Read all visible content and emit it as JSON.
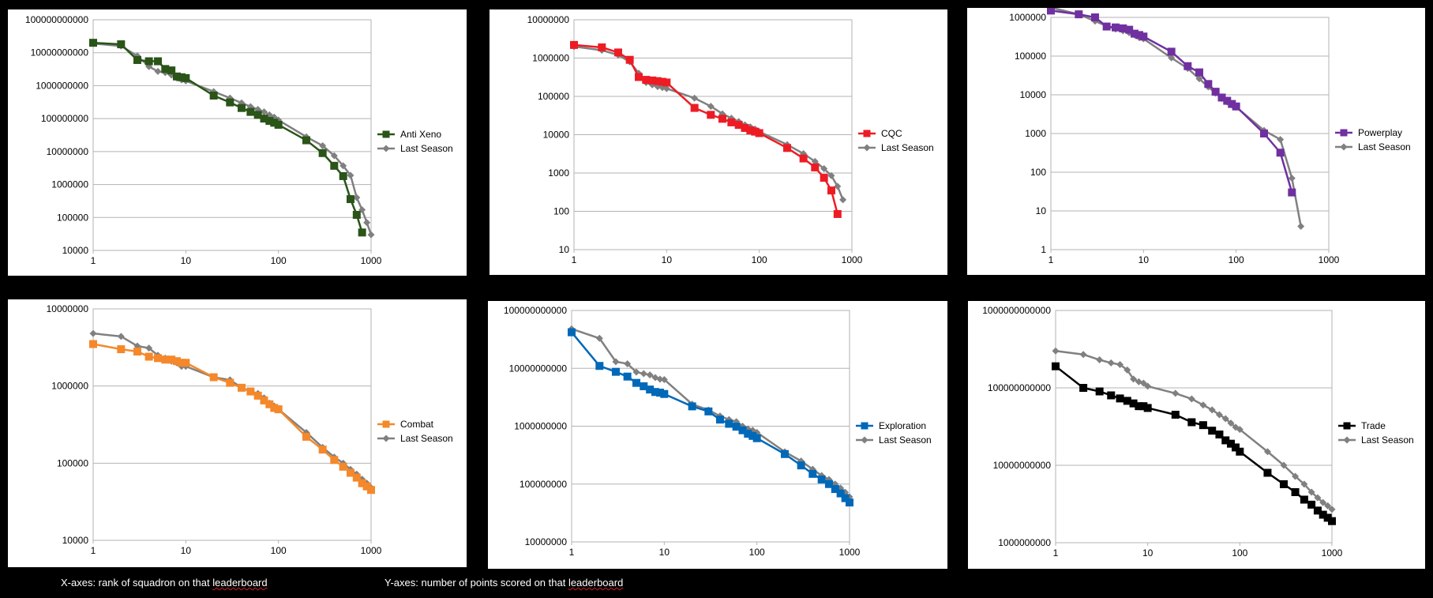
{
  "footnotes": {
    "x_prefix": "X-axes: rank of squadron on that ",
    "x_word": "leaderboard",
    "y_prefix": "Y-axes: number of points scored on that ",
    "y_word": "leaderboard"
  },
  "chart_data": [
    {
      "type": "line",
      "xscale": "log",
      "yscale": "log",
      "xlim": [
        1,
        1000
      ],
      "ylim": [
        10000,
        100000000000
      ],
      "xticks": [
        1,
        10,
        100,
        1000
      ],
      "yticks": [
        10000,
        100000,
        1000000,
        10000000,
        100000000,
        1000000000,
        10000000000,
        100000000000
      ],
      "x_tick_labels": [
        "1",
        "10",
        "100",
        "1000"
      ],
      "y_tick_labels": [
        "10000",
        "100000",
        "1000000",
        "10000000",
        "100000000",
        "1000000000",
        "10000000000",
        "100000000000"
      ],
      "grid": "horizontal",
      "legend": "right",
      "series": [
        {
          "name": "Anti Xeno",
          "color": "#2a5418",
          "marker": "square",
          "x": [
            1,
            2,
            3,
            4,
            5,
            6,
            7,
            8,
            9,
            10,
            20,
            30,
            40,
            50,
            60,
            70,
            80,
            90,
            100,
            200,
            300,
            400,
            500,
            600,
            700,
            800
          ],
          "y": [
            20000000000,
            18000000000,
            6000000000,
            5500000000,
            5500000000,
            3200000000,
            2900000000,
            1900000000,
            1800000000,
            1700000000,
            500000000,
            310000000,
            210000000,
            160000000,
            130000000,
            100000000,
            85000000,
            75000000,
            65000000,
            22000000,
            9000000,
            3700000,
            1800000,
            360000,
            120000,
            35000
          ]
        },
        {
          "name": "Last Season",
          "color": "#808080",
          "marker": "diamond",
          "x": [
            1,
            2,
            3,
            4,
            5,
            6,
            7,
            8,
            9,
            10,
            20,
            30,
            40,
            50,
            60,
            70,
            80,
            90,
            100,
            200,
            300,
            400,
            500,
            600,
            700,
            800,
            900,
            1000
          ],
          "y": [
            19000000000,
            16000000000,
            8000000000,
            3800000000,
            2700000000,
            2500000000,
            2100000000,
            1700000000,
            1500000000,
            1400000000,
            660000000,
            420000000,
            300000000,
            230000000,
            190000000,
            160000000,
            130000000,
            110000000,
            90000000,
            28000000,
            15000000,
            7500000,
            3700000,
            1900000,
            400000,
            170000,
            70000,
            30000
          ]
        }
      ]
    },
    {
      "type": "line",
      "xscale": "log",
      "yscale": "log",
      "xlim": [
        1,
        1000
      ],
      "ylim": [
        10,
        10000000
      ],
      "xticks": [
        1,
        10,
        100,
        1000
      ],
      "yticks": [
        10,
        100,
        1000,
        10000,
        100000,
        1000000,
        10000000
      ],
      "x_tick_labels": [
        "1",
        "10",
        "100",
        "1000"
      ],
      "y_tick_labels": [
        "10",
        "100",
        "1000",
        "10000",
        "100000",
        "1000000",
        "10000000"
      ],
      "grid": "horizontal",
      "legend": "right",
      "series": [
        {
          "name": "CQC",
          "color": "#ed1c24",
          "marker": "square",
          "x": [
            1,
            2,
            3,
            4,
            5,
            6,
            7,
            8,
            9,
            10,
            20,
            30,
            40,
            50,
            60,
            70,
            80,
            90,
            100,
            200,
            300,
            400,
            500,
            600,
            700
          ],
          "y": [
            2200000,
            1900000,
            1400000,
            900000,
            320000,
            270000,
            260000,
            250000,
            240000,
            230000,
            50000,
            33000,
            26000,
            21000,
            18000,
            15000,
            13000,
            12000,
            11000,
            4500,
            2400,
            1400,
            750,
            350,
            85
          ]
        },
        {
          "name": "Last Season",
          "color": "#808080",
          "marker": "diamond",
          "x": [
            1,
            2,
            3,
            4,
            5,
            6,
            7,
            8,
            9,
            10,
            20,
            30,
            40,
            50,
            60,
            70,
            80,
            90,
            100,
            200,
            300,
            400,
            500,
            600,
            700,
            800
          ],
          "y": [
            2000000,
            1600000,
            1200000,
            800000,
            400000,
            230000,
            200000,
            180000,
            170000,
            160000,
            90000,
            55000,
            35000,
            27000,
            22000,
            18000,
            16000,
            14000,
            12000,
            5500,
            3200,
            2000,
            1300,
            850,
            450,
            200
          ]
        }
      ]
    },
    {
      "type": "line",
      "xscale": "log",
      "yscale": "log",
      "xlim": [
        1,
        1000
      ],
      "ylim": [
        1,
        1000000
      ],
      "xticks": [
        1,
        10,
        100,
        1000
      ],
      "yticks": [
        1,
        10,
        100,
        1000,
        10000,
        100000,
        1000000
      ],
      "x_tick_labels": [
        "1",
        "10",
        "100",
        "1000"
      ],
      "y_tick_labels": [
        "1",
        "10",
        "100",
        "1000",
        "10000",
        "100000",
        "1000000"
      ],
      "grid": "horizontal",
      "legend": "right",
      "series": [
        {
          "name": "Powerplay",
          "color": "#7030a0",
          "marker": "square",
          "x": [
            1,
            2,
            3,
            4,
            5,
            6,
            7,
            8,
            9,
            10,
            20,
            30,
            40,
            50,
            60,
            70,
            80,
            90,
            100,
            200,
            300,
            400
          ],
          "y": [
            1500000,
            1200000,
            1000000,
            580000,
            550000,
            520000,
            480000,
            380000,
            350000,
            320000,
            130000,
            55000,
            38000,
            19000,
            12000,
            8500,
            7000,
            5800,
            5000,
            1000,
            320,
            30
          ]
        },
        {
          "name": "Last Season",
          "color": "#808080",
          "marker": "diamond",
          "x": [
            1,
            2,
            3,
            4,
            5,
            6,
            7,
            8,
            9,
            10,
            20,
            30,
            40,
            50,
            60,
            70,
            80,
            90,
            100,
            200,
            300,
            400,
            500
          ],
          "y": [
            1800000,
            1200000,
            800000,
            600000,
            500000,
            450000,
            400000,
            350000,
            300000,
            280000,
            90000,
            48000,
            26000,
            16000,
            11000,
            8000,
            6500,
            5500,
            4800,
            1200,
            700,
            70,
            4
          ]
        }
      ]
    },
    {
      "type": "line",
      "xscale": "log",
      "yscale": "log",
      "xlim": [
        1,
        1000
      ],
      "ylim": [
        10000,
        10000000
      ],
      "xticks": [
        1,
        10,
        100,
        1000
      ],
      "yticks": [
        10000,
        100000,
        1000000,
        10000000
      ],
      "x_tick_labels": [
        "1",
        "10",
        "100",
        "1000"
      ],
      "y_tick_labels": [
        "10000",
        "100000",
        "1000000",
        "10000000"
      ],
      "grid": "horizontal",
      "legend": "right",
      "series": [
        {
          "name": "Combat",
          "color": "#f4882a",
          "marker": "square",
          "x": [
            1,
            2,
            3,
            4,
            5,
            6,
            7,
            8,
            9,
            10,
            20,
            30,
            40,
            50,
            60,
            70,
            80,
            90,
            100,
            200,
            300,
            400,
            500,
            600,
            700,
            800,
            900,
            1000
          ],
          "y": [
            3500000,
            3000000,
            2800000,
            2400000,
            2300000,
            2200000,
            2200000,
            2100000,
            2000000,
            2000000,
            1300000,
            1100000,
            950000,
            850000,
            750000,
            650000,
            580000,
            520000,
            500000,
            220000,
            150000,
            110000,
            90000,
            75000,
            65000,
            55000,
            50000,
            45000
          ]
        },
        {
          "name": "Last Season",
          "color": "#808080",
          "marker": "diamond",
          "x": [
            1,
            2,
            3,
            4,
            5,
            6,
            7,
            8,
            9,
            10,
            20,
            30,
            40,
            50,
            60,
            70,
            80,
            90,
            100,
            200,
            300,
            400,
            500,
            600,
            700,
            800,
            900,
            1000
          ],
          "y": [
            4800000,
            4400000,
            3300000,
            3100000,
            2500000,
            2300000,
            2100000,
            2000000,
            1800000,
            1800000,
            1300000,
            1200000,
            950000,
            850000,
            800000,
            700000,
            600000,
            550000,
            500000,
            250000,
            160000,
            120000,
            100000,
            83000,
            72000,
            62000,
            55000,
            48000
          ]
        }
      ]
    },
    {
      "type": "line",
      "xscale": "log",
      "yscale": "log",
      "xlim": [
        1,
        1000
      ],
      "ylim": [
        10000000,
        100000000000
      ],
      "xticks": [
        1,
        10,
        100,
        1000
      ],
      "yticks": [
        10000000,
        100000000,
        1000000000,
        10000000000,
        100000000000
      ],
      "x_tick_labels": [
        "1",
        "10",
        "100",
        "1000"
      ],
      "y_tick_labels": [
        "10000000",
        "100000000",
        "1000000000",
        "10000000000",
        "100000000000"
      ],
      "grid": "horizontal",
      "legend": "right",
      "series": [
        {
          "name": "Exploration",
          "color": "#0068b8",
          "marker": "square",
          "x": [
            1,
            2,
            3,
            4,
            5,
            6,
            7,
            8,
            9,
            10,
            20,
            30,
            40,
            50,
            60,
            70,
            80,
            90,
            100,
            200,
            300,
            400,
            500,
            600,
            700,
            800,
            900,
            1000
          ],
          "y": [
            42000000000,
            11000000000,
            8700000000,
            7200000000,
            5600000000,
            4900000000,
            4300000000,
            3900000000,
            3800000000,
            3600000000,
            2200000000,
            1800000000,
            1300000000,
            1100000000,
            980000000,
            850000000,
            740000000,
            680000000,
            620000000,
            330000000,
            210000000,
            150000000,
            120000000,
            100000000,
            82000000,
            69000000,
            57000000,
            48000000
          ]
        },
        {
          "name": "Last Season",
          "color": "#808080",
          "marker": "diamond",
          "x": [
            1,
            2,
            3,
            4,
            5,
            6,
            7,
            8,
            9,
            10,
            20,
            30,
            40,
            50,
            60,
            70,
            80,
            90,
            100,
            200,
            300,
            400,
            500,
            600,
            700,
            800,
            900,
            1000
          ],
          "y": [
            48000000000,
            33000000000,
            13000000000,
            12000000000,
            8600000000,
            8100000000,
            7700000000,
            6900000000,
            6500000000,
            6400000000,
            2400000000,
            1900000000,
            1500000000,
            1300000000,
            1200000000,
            1000000000,
            900000000,
            850000000,
            780000000,
            360000000,
            250000000,
            180000000,
            140000000,
            120000000,
            100000000,
            85000000,
            72000000,
            60000000
          ]
        }
      ]
    },
    {
      "type": "line",
      "xscale": "log",
      "yscale": "log",
      "xlim": [
        1,
        1000
      ],
      "ylim": [
        1000000000,
        1000000000000
      ],
      "xticks": [
        1,
        10,
        100,
        1000
      ],
      "yticks": [
        1000000000,
        10000000000,
        100000000000,
        1000000000000
      ],
      "x_tick_labels": [
        "1",
        "10",
        "100",
        "1000"
      ],
      "y_tick_labels": [
        "1000000000",
        "10000000000",
        "100000000000",
        "1000000000000"
      ],
      "grid": "horizontal",
      "legend": "right",
      "series": [
        {
          "name": "Trade",
          "color": "#000000",
          "marker": "square",
          "x": [
            1,
            2,
            3,
            4,
            5,
            6,
            7,
            8,
            9,
            10,
            20,
            30,
            40,
            50,
            60,
            70,
            80,
            90,
            100,
            200,
            300,
            400,
            500,
            600,
            700,
            800,
            900,
            1000
          ],
          "y": [
            190000000000,
            100000000000,
            90000000000,
            80000000000,
            73000000000,
            68000000000,
            63000000000,
            58000000000,
            58000000000,
            55000000000,
            45000000000,
            36000000000,
            33000000000,
            28000000000,
            25000000000,
            21000000000,
            19000000000,
            17000000000,
            15000000000,
            8000000000,
            5700000000,
            4500000000,
            3600000000,
            3100000000,
            2600000000,
            2300000000,
            2100000000,
            1900000000
          ]
        },
        {
          "name": "Last Season",
          "color": "#808080",
          "marker": "diamond",
          "x": [
            1,
            2,
            3,
            4,
            5,
            6,
            7,
            8,
            9,
            10,
            20,
            30,
            40,
            50,
            60,
            70,
            80,
            90,
            100,
            200,
            300,
            400,
            500,
            600,
            700,
            800,
            900,
            1000
          ],
          "y": [
            300000000000,
            270000000000,
            230000000000,
            210000000000,
            200000000000,
            170000000000,
            130000000000,
            120000000000,
            115000000000,
            105000000000,
            85000000000,
            72000000000,
            60000000000,
            52000000000,
            45000000000,
            40000000000,
            35000000000,
            31000000000,
            29000000000,
            15000000000,
            10000000000,
            7200000000,
            5700000000,
            4500000000,
            3800000000,
            3300000000,
            3000000000,
            2700000000
          ]
        }
      ]
    }
  ]
}
